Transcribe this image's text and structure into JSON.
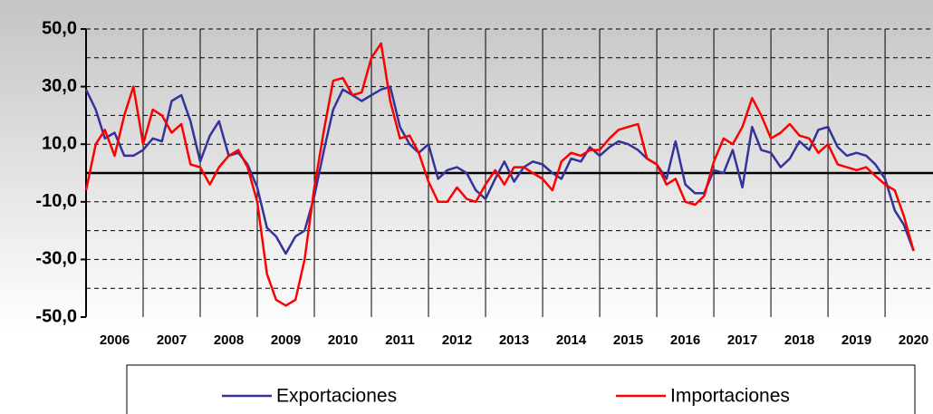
{
  "chart_data": {
    "type": "line",
    "x": [
      2006,
      2006.17,
      2006.33,
      2006.5,
      2006.67,
      2006.83,
      2007,
      2007.17,
      2007.33,
      2007.5,
      2007.67,
      2007.83,
      2008,
      2008.17,
      2008.33,
      2008.5,
      2008.67,
      2008.83,
      2009,
      2009.17,
      2009.33,
      2009.5,
      2009.67,
      2009.83,
      2010,
      2010.17,
      2010.33,
      2010.5,
      2010.67,
      2010.83,
      2011,
      2011.17,
      2011.33,
      2011.5,
      2011.67,
      2011.83,
      2012,
      2012.17,
      2012.33,
      2012.5,
      2012.67,
      2012.83,
      2013,
      2013.17,
      2013.33,
      2013.5,
      2013.67,
      2013.83,
      2014,
      2014.17,
      2014.33,
      2014.5,
      2014.67,
      2014.83,
      2015,
      2015.17,
      2015.33,
      2015.5,
      2015.67,
      2015.83,
      2016,
      2016.17,
      2016.33,
      2016.5,
      2016.67,
      2016.83,
      2017,
      2017.17,
      2017.33,
      2017.5,
      2017.67,
      2017.83,
      2018,
      2018.17,
      2018.33,
      2018.5,
      2018.67,
      2018.83,
      2019,
      2019.17,
      2019.33,
      2019.5,
      2019.67,
      2019.83,
      2020,
      2020.17,
      2020.33,
      2020.5
    ],
    "series": [
      {
        "name": "Exportaciones",
        "color": "#333399",
        "values": [
          29,
          22,
          12,
          14,
          6,
          6,
          8,
          12,
          11,
          25,
          27,
          18,
          4,
          13,
          18,
          6,
          7,
          3,
          -5,
          -19,
          -22,
          -28,
          -22,
          -20,
          -8,
          8,
          22,
          29,
          27,
          25,
          27,
          29,
          30,
          16,
          10,
          7,
          10,
          -2,
          1,
          2,
          0,
          -6,
          -9,
          -2,
          4,
          -3,
          2,
          4,
          3,
          0,
          -2,
          5,
          4,
          9,
          6,
          9,
          11,
          10,
          8,
          5,
          3,
          -2,
          11,
          -4,
          -7,
          -7,
          1,
          0,
          8,
          -5,
          16,
          8,
          7,
          2,
          5,
          11,
          8,
          15,
          16,
          9,
          6,
          7,
          6,
          3,
          -2,
          -13,
          -18,
          -27
        ]
      },
      {
        "name": "Importaciones",
        "color": "#ff0000",
        "values": [
          -6,
          10,
          15,
          6,
          20,
          30,
          10,
          22,
          20,
          14,
          17,
          3,
          2,
          -4,
          2,
          6,
          8,
          2,
          -10,
          -35,
          -44,
          -46,
          -44,
          -30,
          -5,
          15,
          32,
          33,
          27,
          28,
          40,
          45,
          25,
          12,
          13,
          7,
          -3,
          -10,
          -10,
          -5,
          -9,
          -10,
          -4,
          1,
          -4,
          2,
          2,
          0,
          -2,
          -6,
          4,
          7,
          6,
          8,
          8,
          12,
          15,
          16,
          17,
          5,
          3,
          -4,
          -2,
          -10,
          -11,
          -8,
          4,
          12,
          10,
          16,
          26,
          20,
          12,
          14,
          17,
          13,
          12,
          7,
          10,
          3,
          2,
          1,
          2,
          -1,
          -4,
          -6,
          -15,
          -27
        ]
      }
    ],
    "xlim": [
      2006,
      2020.84
    ],
    "xticks": [
      {
        "value": 2006.5,
        "label": "2006"
      },
      {
        "value": 2007.5,
        "label": "2007"
      },
      {
        "value": 2008.5,
        "label": "2008"
      },
      {
        "value": 2009.5,
        "label": "2009"
      },
      {
        "value": 2010.5,
        "label": "2010"
      },
      {
        "value": 2011.5,
        "label": "2011"
      },
      {
        "value": 2012.5,
        "label": "2012"
      },
      {
        "value": 2013.5,
        "label": "2013"
      },
      {
        "value": 2014.5,
        "label": "2014"
      },
      {
        "value": 2015.5,
        "label": "2015"
      },
      {
        "value": 2016.5,
        "label": "2016"
      },
      {
        "value": 2017.5,
        "label": "2017"
      },
      {
        "value": 2018.5,
        "label": "2018"
      },
      {
        "value": 2019.5,
        "label": "2019"
      },
      {
        "value": 2020.5,
        "label": "2020"
      }
    ],
    "xgrid": [
      2007,
      2008,
      2009,
      2010,
      2011,
      2012,
      2013,
      2014,
      2015,
      2016,
      2017,
      2018,
      2019,
      2020
    ],
    "ylim": [
      -50,
      50
    ],
    "yticks": [
      {
        "value": 50,
        "label": "50,0"
      },
      {
        "value": 30,
        "label": "30,0"
      },
      {
        "value": 10,
        "label": "10,0"
      },
      {
        "value": -10,
        "label": "-10,0"
      },
      {
        "value": -30,
        "label": "-30,0"
      },
      {
        "value": -50,
        "label": "-50,0"
      }
    ],
    "ygrid": [
      50,
      40,
      30,
      20,
      10,
      -10,
      -20,
      -30,
      -40
    ],
    "legend": "bottom"
  }
}
